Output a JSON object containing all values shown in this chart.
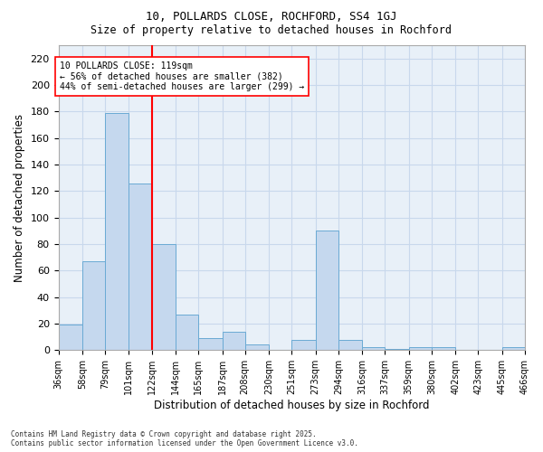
{
  "title_line1": "10, POLLARDS CLOSE, ROCHFORD, SS4 1GJ",
  "title_line2": "Size of property relative to detached houses in Rochford",
  "xlabel": "Distribution of detached houses by size in Rochford",
  "ylabel": "Number of detached properties",
  "bins": [
    36,
    58,
    79,
    101,
    122,
    144,
    165,
    187,
    208,
    230,
    251,
    273,
    294,
    316,
    337,
    359,
    380,
    402,
    423,
    445,
    466
  ],
  "bar_values": [
    19,
    67,
    179,
    126,
    80,
    27,
    9,
    14,
    4,
    0,
    8,
    90,
    8,
    2,
    1,
    2,
    2,
    0,
    0,
    2
  ],
  "bar_color": "#c5d8ee",
  "bar_edge_color": "#6aaad4",
  "vline_x": 122,
  "vline_color": "red",
  "annotation_text": "10 POLLARDS CLOSE: 119sqm\n← 56% of detached houses are smaller (382)\n44% of semi-detached houses are larger (299) →",
  "annotation_box_color": "white",
  "annotation_box_edge": "red",
  "ylim": [
    0,
    230
  ],
  "yticks": [
    0,
    20,
    40,
    60,
    80,
    100,
    120,
    140,
    160,
    180,
    200,
    220
  ],
  "grid_color": "#c8d8ec",
  "background_color": "#e8f0f8",
  "footer_text": "Contains HM Land Registry data © Crown copyright and database right 2025.\nContains public sector information licensed under the Open Government Licence v3.0.",
  "tick_labels": [
    "36sqm",
    "58sqm",
    "79sqm",
    "101sqm",
    "122sqm",
    "144sqm",
    "165sqm",
    "187sqm",
    "208sqm",
    "230sqm",
    "251sqm",
    "273sqm",
    "294sqm",
    "316sqm",
    "337sqm",
    "359sqm",
    "380sqm",
    "402sqm",
    "423sqm",
    "445sqm",
    "466sqm"
  ]
}
